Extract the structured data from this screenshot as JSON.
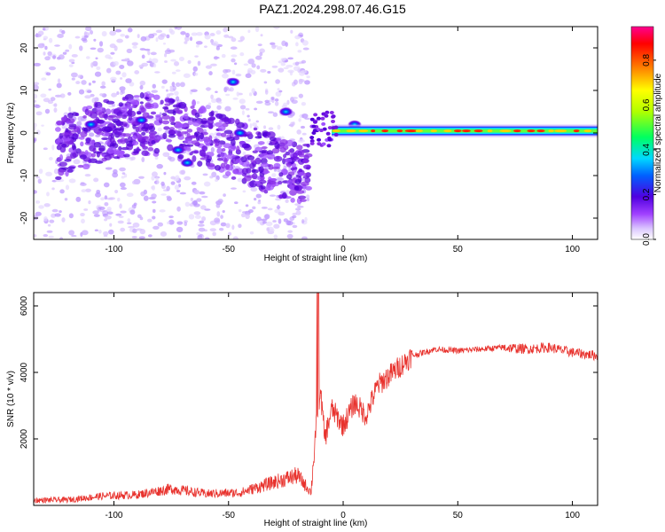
{
  "title": "PAZ1.2024.298.07.46.G15",
  "chart_data": [
    {
      "type": "heatmap",
      "xlabel": "Height of straight line (km)",
      "ylabel": "Frequency (Hz)",
      "xlim": [
        -135,
        111
      ],
      "ylim": [
        -25,
        25
      ],
      "xticks": [
        -100,
        -50,
        0,
        50,
        100
      ],
      "yticks": [
        -20,
        -10,
        0,
        10,
        20
      ],
      "colorbar": {
        "label": "Normalized spectral amplitude",
        "range": [
          0,
          0.95
        ],
        "ticks": [
          0.0,
          0.2,
          0.4,
          0.6,
          0.8
        ]
      },
      "features": {
        "stable_tone": {
          "x_start": -5,
          "x_end": 111,
          "frequency": 0.5
        },
        "scatter_region": {
          "x_start": -135,
          "x_end": -15
        },
        "bright_blobs": [
          {
            "x": -48,
            "y": 12
          },
          {
            "x": -72,
            "y": -4
          },
          {
            "x": -25,
            "y": 5
          },
          {
            "x": -45,
            "y": 0
          },
          {
            "x": -88,
            "y": 3
          },
          {
            "x": -110,
            "y": 2
          },
          {
            "x": -68,
            "y": -7
          },
          {
            "x": -2,
            "y": 0.5
          },
          {
            "x": 5,
            "y": 2
          }
        ]
      }
    },
    {
      "type": "line",
      "xlabel": "Height of straight line (km)",
      "ylabel": "SNR (10 * v/v)",
      "xlim": [
        -135,
        111
      ],
      "ylim": [
        0,
        6400
      ],
      "xticks": [
        -100,
        -50,
        0,
        50,
        100
      ],
      "yticks": [
        2000,
        4000,
        6000
      ],
      "color": "#e8322d",
      "x": [
        -135,
        -120,
        -105,
        -90,
        -75,
        -60,
        -45,
        -30,
        -20,
        -14,
        -12,
        -10,
        -8,
        -5,
        0,
        5,
        10,
        15,
        20,
        25,
        30,
        40,
        50,
        60,
        70,
        80,
        90,
        100,
        111
      ],
      "values": [
        150,
        170,
        280,
        320,
        500,
        350,
        380,
        700,
        900,
        400,
        2200,
        3500,
        2000,
        2900,
        2400,
        3100,
        2700,
        3600,
        3900,
        4200,
        4500,
        4700,
        4650,
        4700,
        4750,
        4700,
        4750,
        4600,
        4500
      ]
    }
  ]
}
